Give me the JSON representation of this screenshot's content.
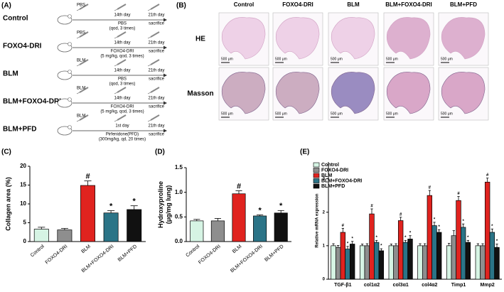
{
  "panel_a": {
    "label": "(A)",
    "rows": [
      {
        "group": "Control",
        "agent": "PBS",
        "start": "14th day",
        "treatment": "PBS",
        "dose": "(qod, 3 times)",
        "end": "21th day",
        "end_note": "sacrifice"
      },
      {
        "group": "FOXO4-DRI",
        "agent": "PBS",
        "start": "14th day",
        "treatment": "FOXO4-DRI",
        "dose": "(5 mg/kg, qod, 3 times)",
        "end": "21th day",
        "end_note": "sacrifice"
      },
      {
        "group": "BLM",
        "agent": "BLM",
        "start": "14th day",
        "treatment": "PBS",
        "dose": "(qod, 3 times)",
        "end": "21th day",
        "end_note": "sacrifice"
      },
      {
        "group": "BLM+FOXO4-DRI",
        "agent": "BLM",
        "start": "14th day",
        "treatment": "FOXO4-DRI",
        "dose": "(5 mg/kg, qod, 3 times)",
        "end": "21th day",
        "end_note": "sacrifice"
      },
      {
        "group": "BLM+PFD",
        "agent": "BLM",
        "start": "1st day",
        "treatment": "Pirfenidone(PFD)",
        "dose": "(300mg/kg, qd, 20 times)",
        "end": "21th day",
        "end_note": "sacrifice"
      }
    ]
  },
  "panel_b": {
    "label": "(B)",
    "columns": [
      "Control",
      "FOXO4-DRI",
      "BLM",
      "BLM+FOXO4-DRI",
      "BLM+PFD"
    ],
    "rows": [
      "HE",
      "Masson"
    ],
    "scale_bar": "500 μm"
  },
  "chart_data": [
    {
      "type": "bar",
      "panel": "(C)",
      "ylabel": "Collagen area (%)",
      "categories": [
        "Control",
        "FOXO4-DRI",
        "BLM",
        "BLM+FOXO4-DRI",
        "BLM+PFD"
      ],
      "values": [
        3.3,
        3.1,
        14.9,
        7.6,
        8.5
      ],
      "errors": [
        0.5,
        0.4,
        1.2,
        0.6,
        1.0
      ],
      "significance": [
        null,
        null,
        "#",
        "*",
        "*"
      ],
      "colors": [
        "#d6f4e4",
        "#8e8e8e",
        "#e0231f",
        "#2b7487",
        "#111111"
      ],
      "ylim": [
        0,
        20
      ],
      "yticks": [
        0,
        5,
        10,
        15,
        20
      ]
    },
    {
      "type": "bar",
      "panel": "(D)",
      "ylabel": "Hydroxyproline\n(μg/mg lung)",
      "categories": [
        "Control",
        "FOXO4-DRI",
        "BLM",
        "BLM+FOXO4-DRI",
        "BLM+PFD"
      ],
      "values": [
        0.42,
        0.42,
        0.97,
        0.52,
        0.58
      ],
      "errors": [
        0.03,
        0.05,
        0.06,
        0.02,
        0.05
      ],
      "significance": [
        null,
        null,
        "#",
        "*",
        "*"
      ],
      "colors": [
        "#d6f4e4",
        "#8e8e8e",
        "#e0231f",
        "#2b7487",
        "#111111"
      ],
      "ylim": [
        0,
        1.5
      ],
      "yticks": [
        {
          "value": 0,
          "label": "0.0"
        },
        0.5,
        {
          "value": 1,
          "label": "1.0"
        },
        1.5
      ]
    },
    {
      "type": "grouped_bar",
      "panel": "(E)",
      "ylabel": "Relative mRNA expression",
      "categories": [
        "TGF-β1",
        "col1α2",
        "col3α1",
        "col4α2",
        "Timp1",
        "Mmp2"
      ],
      "series": [
        {
          "name": "Control",
          "color": "#d6f4e4",
          "values": [
            1,
            1,
            1,
            1,
            1,
            1
          ],
          "errors": [
            0.06,
            0.05,
            0.05,
            0.06,
            0.07,
            0.06
          ],
          "significance": [
            null,
            null,
            null,
            null,
            null,
            null
          ]
        },
        {
          "name": "FOXO4-DRI",
          "color": "#8e8e8e",
          "values": [
            0.95,
            1.0,
            1.0,
            1.0,
            1.3,
            1.0
          ],
          "errors": [
            0.06,
            0.06,
            0.06,
            0.06,
            0.15,
            0.06
          ],
          "significance": [
            null,
            null,
            null,
            null,
            null,
            null
          ]
        },
        {
          "name": "BLM",
          "color": "#e0231f",
          "values": [
            1.4,
            1.95,
            1.75,
            2.5,
            2.35,
            2.9
          ],
          "errors": [
            0.12,
            0.15,
            0.1,
            0.15,
            0.12,
            0.12
          ],
          "significance": [
            "#",
            "#",
            "#",
            "#",
            "#",
            "#"
          ]
        },
        {
          "name": "BLM+FOXO4-DRI",
          "color": "#2b7487",
          "values": [
            0.9,
            1.1,
            1.1,
            1.6,
            1.55,
            1.4
          ],
          "errors": [
            0.08,
            0.06,
            0.06,
            0.1,
            0.1,
            0.1
          ],
          "significance": [
            "*",
            "*",
            "*",
            "*",
            "*",
            "*"
          ]
        },
        {
          "name": "BLM+PFD",
          "color": "#111111",
          "values": [
            1.05,
            0.85,
            1.2,
            1.4,
            1.1,
            0.95
          ],
          "errors": [
            0.08,
            0.06,
            0.1,
            0.08,
            0.06,
            0.1
          ],
          "significance": [
            "*",
            "*",
            "*",
            "*",
            "*",
            "*"
          ]
        }
      ],
      "ylim": [
        0,
        3.5
      ],
      "yticks": [
        0,
        1,
        2,
        3
      ]
    }
  ]
}
